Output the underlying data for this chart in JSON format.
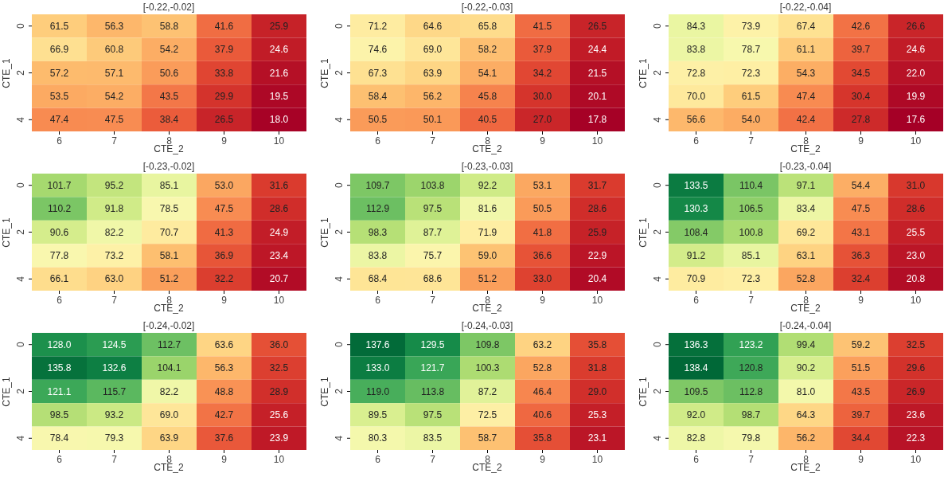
{
  "chart_data": [
    {
      "type": "heatmap",
      "title": "[-0.22,-0.02]",
      "xlabel": "CTE_2",
      "ylabel": "CTE_1",
      "categories": [
        "6",
        "7",
        "8",
        "9",
        "10"
      ],
      "y_categories": [
        "0",
        null,
        "2",
        null,
        "4"
      ],
      "data_labels": true,
      "cells": [
        [
          61.5,
          56.3,
          58.8,
          41.6,
          25.9
        ],
        [
          66.9,
          60.8,
          54.2,
          37.9,
          24.6
        ],
        [
          57.2,
          57.1,
          50.6,
          33.8,
          21.6
        ],
        [
          53.5,
          54.2,
          43.5,
          29.9,
          19.5
        ],
        [
          47.4,
          47.5,
          38.4,
          26.5,
          18.0
        ]
      ],
      "cell_labels": [
        [
          "61.5",
          "56.3",
          "58.8",
          "41.6",
          "25.9"
        ],
        [
          "66.9",
          "60.8",
          "54.2",
          "37.9",
          "24.6"
        ],
        [
          "57.2",
          "57.1",
          "50.6",
          "33.8",
          "21.6"
        ],
        [
          "53.5",
          "54.2",
          "43.5",
          "29.9",
          "19.5"
        ],
        [
          "47.4",
          "47.5",
          "38.4",
          "26.5",
          "18.0"
        ]
      ]
    },
    {
      "type": "heatmap",
      "title": "[-0.22,-0.03]",
      "xlabel": "CTE_2",
      "ylabel": "CTE_1",
      "categories": [
        "6",
        "7",
        "8",
        "9",
        "10"
      ],
      "y_categories": [
        "0",
        null,
        "2",
        null,
        "4"
      ],
      "data_labels": true,
      "cells": [
        [
          71.2,
          64.6,
          65.8,
          41.5,
          26.5
        ],
        [
          74.6,
          69.0,
          58.2,
          37.9,
          24.4
        ],
        [
          67.3,
          63.9,
          54.1,
          34.2,
          21.5
        ],
        [
          58.4,
          56.2,
          45.8,
          30.0,
          20.1
        ],
        [
          50.5,
          50.1,
          40.5,
          27.0,
          17.8
        ]
      ],
      "cell_labels": [
        [
          "71.2",
          "64.6",
          "65.8",
          "41.5",
          "26.5"
        ],
        [
          "74.6",
          "69.0",
          "58.2",
          "37.9",
          "24.4"
        ],
        [
          "67.3",
          "63.9",
          "54.1",
          "34.2",
          "21.5"
        ],
        [
          "58.4",
          "56.2",
          "45.8",
          "30.0",
          "20.1"
        ],
        [
          "50.5",
          "50.1",
          "40.5",
          "27.0",
          "17.8"
        ]
      ]
    },
    {
      "type": "heatmap",
      "title": "[-0.22,-0.04]",
      "xlabel": "CTE_2",
      "ylabel": "CTE_1",
      "categories": [
        "6",
        "7",
        "8",
        "9",
        "10"
      ],
      "y_categories": [
        "0",
        null,
        "2",
        null,
        "4"
      ],
      "data_labels": true,
      "cells": [
        [
          84.3,
          73.9,
          67.4,
          42.6,
          26.6
        ],
        [
          83.8,
          78.7,
          61.1,
          39.7,
          24.6
        ],
        [
          72.8,
          72.3,
          54.3,
          34.5,
          22.0
        ],
        [
          70.0,
          61.5,
          47.4,
          30.4,
          19.9
        ],
        [
          56.6,
          54.0,
          42.4,
          27.8,
          17.6
        ]
      ],
      "cell_labels": [
        [
          "84.3",
          "73.9",
          "67.4",
          "42.6",
          "26.6"
        ],
        [
          "83.8",
          "78.7",
          "61.1",
          "39.7",
          "24.6"
        ],
        [
          "72.8",
          "72.3",
          "54.3",
          "34.5",
          "22.0"
        ],
        [
          "70.0",
          "61.5",
          "47.4",
          "30.4",
          "19.9"
        ],
        [
          "56.6",
          "54.0",
          "42.4",
          "27.8",
          "17.6"
        ]
      ]
    },
    {
      "type": "heatmap",
      "title": "[-0.23,-0.02]",
      "xlabel": "CTE_2",
      "ylabel": "CTE_1",
      "categories": [
        "6",
        "7",
        "8",
        "9",
        "10"
      ],
      "y_categories": [
        "0",
        null,
        "2",
        null,
        "4"
      ],
      "data_labels": true,
      "cells": [
        [
          101.7,
          95.2,
          85.1,
          53.0,
          31.6
        ],
        [
          110.2,
          91.8,
          78.5,
          47.5,
          28.6
        ],
        [
          90.6,
          82.2,
          70.7,
          41.3,
          24.9
        ],
        [
          77.8,
          73.2,
          58.1,
          36.9,
          23.4
        ],
        [
          66.1,
          63.0,
          51.2,
          32.2,
          20.7
        ]
      ],
      "cell_labels": [
        [
          "101.7",
          "95.2",
          "85.1",
          "53.0",
          "31.6"
        ],
        [
          "110.2",
          "91.8",
          "78.5",
          "47.5",
          "28.6"
        ],
        [
          "90.6",
          "82.2",
          "70.7",
          "41.3",
          "24.9"
        ],
        [
          "77.8",
          "73.2",
          "58.1",
          "36.9",
          "23.4"
        ],
        [
          "66.1",
          "63.0",
          "51.2",
          "32.2",
          "20.7"
        ]
      ]
    },
    {
      "type": "heatmap",
      "title": "[-0.23,-0.03]",
      "xlabel": "CTE_2",
      "ylabel": "CTE_1",
      "categories": [
        "6",
        "7",
        "8",
        "9",
        "10"
      ],
      "y_categories": [
        "0",
        null,
        "2",
        null,
        "4"
      ],
      "data_labels": true,
      "cells": [
        [
          109.7,
          103.8,
          92.2,
          53.1,
          31.7
        ],
        [
          112.9,
          97.5,
          81.6,
          50.5,
          28.6
        ],
        [
          98.3,
          87.7,
          71.9,
          41.8,
          25.9
        ],
        [
          83.8,
          75.7,
          59.0,
          36.6,
          22.9
        ],
        [
          68.4,
          68.6,
          51.2,
          33.0,
          20.4
        ]
      ],
      "cell_labels": [
        [
          "109.7",
          "103.8",
          "92.2",
          "53.1",
          "31.7"
        ],
        [
          "112.9",
          "97.5",
          "81.6",
          "50.5",
          "28.6"
        ],
        [
          "98.3",
          "87.7",
          "71.9",
          "41.8",
          "25.9"
        ],
        [
          "83.8",
          "75.7",
          "59.0",
          "36.6",
          "22.9"
        ],
        [
          "68.4",
          "68.6",
          "51.2",
          "33.0",
          "20.4"
        ]
      ]
    },
    {
      "type": "heatmap",
      "title": "[-0.23,-0.04]",
      "xlabel": "CTE_2",
      "ylabel": "CTE_1",
      "categories": [
        "6",
        "7",
        "8",
        "9",
        "10"
      ],
      "y_categories": [
        "0",
        null,
        "2",
        null,
        "4"
      ],
      "data_labels": true,
      "cells": [
        [
          133.5,
          110.4,
          97.1,
          54.4,
          31.0
        ],
        [
          130.3,
          106.5,
          83.4,
          47.5,
          28.6
        ],
        [
          108.4,
          100.8,
          69.2,
          43.1,
          25.5
        ],
        [
          91.2,
          85.1,
          63.1,
          36.3,
          23.0
        ],
        [
          70.9,
          72.3,
          52.8,
          32.4,
          20.8
        ]
      ],
      "cell_labels": [
        [
          "133.5",
          "110.4",
          "97.1",
          "54.4",
          "31.0"
        ],
        [
          "130.3",
          "106.5",
          "83.4",
          "47.5",
          "28.6"
        ],
        [
          "108.4",
          "100.8",
          "69.2",
          "43.1",
          "25.5"
        ],
        [
          "91.2",
          "85.1",
          "63.1",
          "36.3",
          "23.0"
        ],
        [
          "70.9",
          "72.3",
          "52.8",
          "32.4",
          "20.8"
        ]
      ]
    },
    {
      "type": "heatmap",
      "title": "[-0.24,-0.02]",
      "xlabel": "CTE_2",
      "ylabel": "CTE_1",
      "categories": [
        "6",
        "7",
        "8",
        "9",
        "10"
      ],
      "y_categories": [
        "0",
        null,
        "2",
        null,
        "4"
      ],
      "data_labels": true,
      "cells": [
        [
          128.0,
          124.5,
          112.7,
          63.6,
          36.0
        ],
        [
          135.8,
          132.6,
          104.1,
          56.3,
          32.5
        ],
        [
          121.1,
          115.7,
          82.2,
          48.8,
          28.9
        ],
        [
          98.5,
          93.2,
          69.0,
          42.7,
          25.6
        ],
        [
          78.4,
          79.3,
          63.9,
          37.6,
          23.9
        ]
      ],
      "cell_labels": [
        [
          "128.0",
          "124.5",
          "112.7",
          "63.6",
          "36.0"
        ],
        [
          "135.8",
          "132.6",
          "104.1",
          "56.3",
          "32.5"
        ],
        [
          "121.1",
          "115.7",
          "82.2",
          "48.8",
          "28.9"
        ],
        [
          "98.5",
          "93.2",
          "69.0",
          "42.7",
          "25.6"
        ],
        [
          "78.4",
          "79.3",
          "63.9",
          "37.6",
          "23.9"
        ]
      ]
    },
    {
      "type": "heatmap",
      "title": "[-0.24,-0.03]",
      "xlabel": "CTE_2",
      "ylabel": "CTE_1",
      "categories": [
        "6",
        "7",
        "8",
        "9",
        "10"
      ],
      "y_categories": [
        "0",
        null,
        "2",
        null,
        "4"
      ],
      "data_labels": true,
      "cells": [
        [
          137.6,
          129.5,
          109.8,
          63.2,
          35.8
        ],
        [
          133.0,
          121.7,
          100.3,
          52.8,
          31.8
        ],
        [
          119.0,
          113.8,
          87.2,
          46.4,
          29.0
        ],
        [
          89.5,
          97.5,
          72.5,
          40.6,
          25.3
        ],
        [
          80.3,
          83.5,
          58.7,
          35.8,
          23.1
        ]
      ],
      "cell_labels": [
        [
          "137.6",
          "129.5",
          "109.8",
          "63.2",
          "35.8"
        ],
        [
          "133.0",
          "121.7",
          "100.3",
          "52.8",
          "31.8"
        ],
        [
          "119.0",
          "113.8",
          "87.2",
          "46.4",
          "29.0"
        ],
        [
          "89.5",
          "97.5",
          "72.5",
          "40.6",
          "25.3"
        ],
        [
          "80.3",
          "83.5",
          "58.7",
          "35.8",
          "23.1"
        ]
      ]
    },
    {
      "type": "heatmap",
      "title": "[-0.24,-0.04]",
      "xlabel": "CTE_2",
      "ylabel": "CTE_1",
      "categories": [
        "6",
        "7",
        "8",
        "9",
        "10"
      ],
      "y_categories": [
        "0",
        null,
        "2",
        null,
        "4"
      ],
      "data_labels": true,
      "cells": [
        [
          136.3,
          123.2,
          99.4,
          59.2,
          32.5
        ],
        [
          138.4,
          120.8,
          90.2,
          51.5,
          29.6
        ],
        [
          109.5,
          112.8,
          81.0,
          43.5,
          26.9
        ],
        [
          92.0,
          98.7,
          64.3,
          39.7,
          23.6
        ],
        [
          82.8,
          79.8,
          56.2,
          34.4,
          22.3
        ]
      ],
      "cell_labels": [
        [
          "136.3",
          "123.2",
          "99.4",
          "59.2",
          "32.5"
        ],
        [
          "138.4",
          "120.8",
          "90.2",
          "51.5",
          "29.6"
        ],
        [
          "109.5",
          "112.8",
          "81.0",
          "43.5",
          "26.9"
        ],
        [
          "92.0",
          "98.7",
          "64.3",
          "39.7",
          "23.6"
        ],
        [
          "82.8",
          "79.8",
          "56.2",
          "34.4",
          "22.3"
        ]
      ]
    }
  ]
}
